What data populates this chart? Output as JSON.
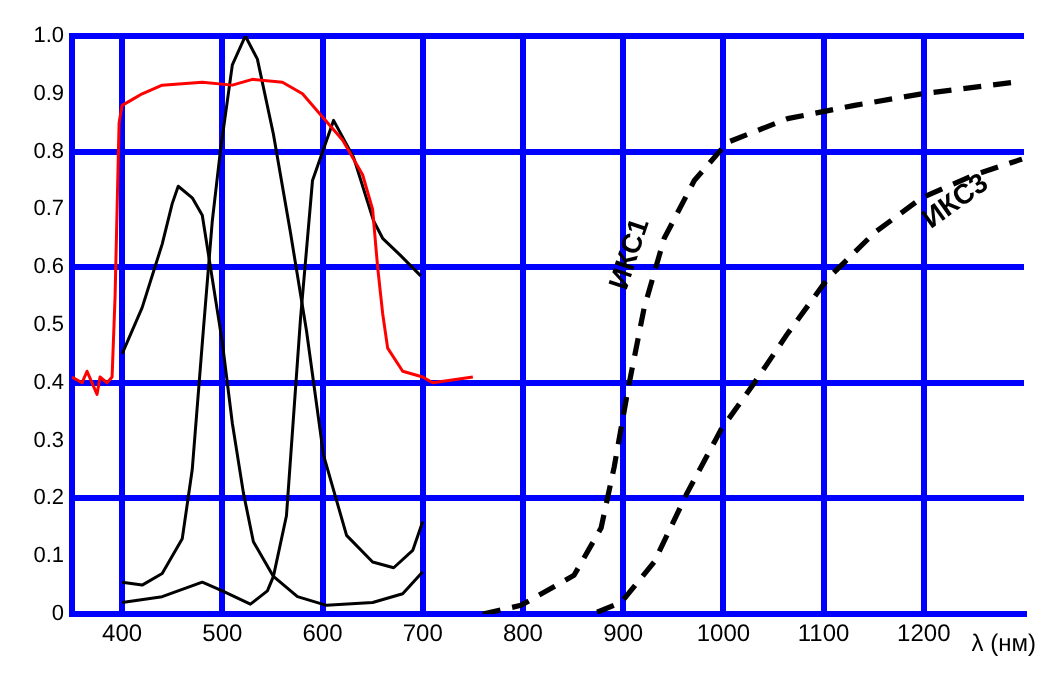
{
  "chart_data": {
    "type": "line",
    "xlabel": "λ (нм)",
    "xlim": [
      350,
      1300
    ],
    "xticks": [
      400,
      500,
      600,
      700,
      800,
      900,
      1000,
      1100,
      1200
    ],
    "ylim": [
      0,
      1
    ],
    "yticks": [
      0,
      0.1,
      0.2,
      0.3,
      0.4,
      0.5,
      0.6,
      0.7,
      0.8,
      0.9,
      {
        "value": 1,
        "label": "1.0"
      }
    ],
    "grid": true,
    "legend": false,
    "marker": "none",
    "series": [
      {
        "color": "#ff0000",
        "x": [
          350,
          360,
          365,
          370,
          375,
          378,
          385,
          390,
          393,
          395,
          397,
          400,
          410,
          420,
          440,
          480,
          510,
          530,
          560,
          580,
          600,
          620,
          640,
          650,
          655,
          660,
          665,
          680,
          700,
          710,
          750
        ],
        "values": [
          0.41,
          0.4,
          0.42,
          0.4,
          0.38,
          0.41,
          0.4,
          0.41,
          0.55,
          0.7,
          0.85,
          0.88,
          0.89,
          0.9,
          0.915,
          0.92,
          0.915,
          0.925,
          0.92,
          0.9,
          0.86,
          0.82,
          0.76,
          0.7,
          0.6,
          0.52,
          0.46,
          0.42,
          0.41,
          0.4,
          0.41
        ]
      },
      {
        "color": "#000000",
        "x": [
          400,
          420,
          440,
          450,
          456,
          470,
          480,
          490,
          500,
          510,
          521,
          531,
          551,
          575,
          604,
          650,
          680,
          700
        ],
        "values": [
          0.45,
          0.53,
          0.64,
          0.71,
          0.74,
          0.72,
          0.69,
          0.58,
          0.47,
          0.33,
          0.21,
          0.125,
          0.065,
          0.03,
          0.015,
          0.02,
          0.035,
          0.073
        ]
      },
      {
        "color": "#000000",
        "x": [
          400,
          420,
          440,
          460,
          470,
          481,
          490,
          498,
          510,
          523,
          535,
          551,
          568,
          584,
          601,
          624,
          650,
          671,
          690,
          700
        ],
        "values": [
          0.055,
          0.05,
          0.07,
          0.13,
          0.25,
          0.49,
          0.68,
          0.8,
          0.95,
          1.0,
          0.96,
          0.83,
          0.66,
          0.49,
          0.275,
          0.136,
          0.09,
          0.08,
          0.11,
          0.16
        ]
      },
      {
        "color": "#000000",
        "x": [
          400,
          440,
          480,
          500,
          528,
          545,
          551,
          564,
          578,
          590,
          611,
          631,
          651,
          660,
          678,
          698
        ],
        "values": [
          0.02,
          0.03,
          0.055,
          0.04,
          0.017,
          0.04,
          0.065,
          0.17,
          0.51,
          0.75,
          0.854,
          0.79,
          0.68,
          0.65,
          0.62,
          0.585
        ]
      },
      {
        "name": "ИКС1",
        "color": "#000000",
        "line_style": "dashed",
        "x": [
          760,
          798,
          851,
          878,
          891,
          905,
          921,
          941,
          971,
          1004,
          1064,
          1131,
          1198,
          1290
        ],
        "values": [
          0,
          0.015,
          0.067,
          0.149,
          0.254,
          0.39,
          0.53,
          0.65,
          0.75,
          0.816,
          0.857,
          0.88,
          0.9,
          0.92
        ]
      },
      {
        "name": "ИКС3",
        "color": "#000000",
        "line_style": "dashed",
        "x": [
          874,
          898,
          931,
          964,
          998,
          1031,
          1064,
          1104,
          1151,
          1198,
          1251,
          1298
        ],
        "values": [
          0.003,
          0.02,
          0.09,
          0.21,
          0.32,
          0.4,
          0.485,
          0.58,
          0.66,
          0.72,
          0.76,
          0.787
        ]
      }
    ]
  }
}
